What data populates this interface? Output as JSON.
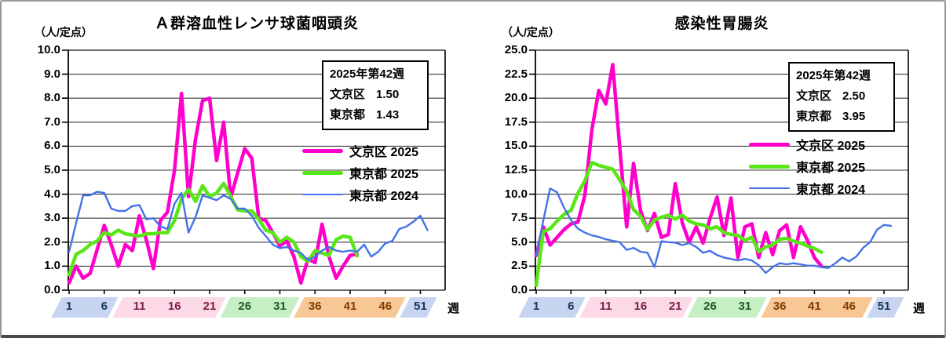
{
  "colors": {
    "bunkyo2025": "#FF00CC",
    "tokyo2025": "#59E617",
    "tokyo2024": "#4472E8",
    "band_blue": "#C7D5F0",
    "band_pink": "#FBD9E6",
    "band_green": "#C7EFC5",
    "band_orange": "#F7C795",
    "grid": "#3a3a3a",
    "frame": "#000000"
  },
  "legend": [
    {
      "label": "文京区 2025",
      "series": "bunkyo2025"
    },
    {
      "label": "東京都 2025",
      "series": "tokyo2025"
    },
    {
      "label": "東京都 2024",
      "series": "tokyo2024"
    }
  ],
  "x_axis": {
    "unit": "週",
    "tick_weeks": [
      1,
      6,
      11,
      16,
      21,
      26,
      31,
      36,
      41,
      46,
      51
    ],
    "bands": [
      {
        "color_key": "band_blue",
        "text_color": "#17365D",
        "weeks": [
          1,
          6
        ]
      },
      {
        "color_key": "band_pink",
        "text_color": "#7A1F45",
        "weeks": [
          11,
          16,
          21
        ]
      },
      {
        "color_key": "band_green",
        "text_color": "#1E5C1E",
        "weeks": [
          26,
          31
        ]
      },
      {
        "color_key": "band_orange",
        "text_color": "#833C00",
        "weeks": [
          36,
          41,
          46
        ]
      },
      {
        "color_key": "band_blue",
        "text_color": "#17365D",
        "weeks": [
          51
        ]
      }
    ]
  },
  "chart_data": [
    {
      "type": "line",
      "title": "Ａ群溶血性レンサ球菌咽頭炎",
      "unit_label": "（人/定点）",
      "xlabel": "週",
      "xlim": [
        1,
        52
      ],
      "ylim": [
        0,
        10
      ],
      "grid": true,
      "y_ticks": [
        "10.0",
        "9.0",
        "8.0",
        "7.0",
        "6.0",
        "5.0",
        "4.0",
        "3.0",
        "2.0",
        "1.0",
        "0.0"
      ],
      "info_box": {
        "week": "2025年第42週",
        "rows": [
          {
            "label": "文京区",
            "value": "1.50"
          },
          {
            "label": "東京都",
            "value": "1.43"
          }
        ]
      },
      "series": [
        {
          "name": "文京区 2025",
          "key": "bunkyo2025",
          "start_week": 1,
          "values": [
            0.3,
            1.0,
            0.5,
            0.7,
            1.7,
            2.7,
            1.9,
            1.0,
            1.9,
            1.65,
            3.1,
            2.1,
            0.9,
            2.9,
            3.25,
            5.0,
            8.2,
            3.9,
            6.3,
            7.9,
            8.0,
            5.4,
            7.0,
            3.85,
            4.9,
            5.9,
            5.5,
            3.0,
            2.9,
            2.4,
            1.85,
            2.05,
            1.4,
            0.3,
            1.3,
            1.15,
            2.75,
            1.4,
            0.5,
            1.0,
            1.45,
            1.5
          ]
        },
        {
          "name": "東京都 2025",
          "key": "tokyo2025",
          "start_week": 1,
          "values": [
            0.65,
            1.5,
            1.65,
            1.9,
            2.05,
            2.4,
            2.3,
            2.5,
            2.35,
            2.3,
            2.25,
            2.35,
            2.35,
            2.4,
            2.4,
            2.9,
            3.8,
            4.2,
            3.7,
            4.35,
            3.9,
            4.05,
            4.45,
            3.9,
            3.35,
            3.3,
            3.3,
            2.95,
            2.5,
            2.4,
            2.0,
            2.2,
            2.0,
            1.4,
            1.2,
            1.65,
            1.55,
            1.45,
            2.1,
            2.25,
            2.2,
            1.43
          ]
        },
        {
          "name": "東京都 2024",
          "key": "tokyo2024",
          "start_week": 1,
          "values": [
            1.6,
            2.8,
            3.95,
            3.95,
            4.1,
            4.05,
            3.4,
            3.3,
            3.3,
            3.5,
            3.55,
            2.95,
            3.0,
            2.65,
            2.55,
            3.6,
            4.05,
            2.4,
            3.05,
            3.95,
            3.85,
            3.75,
            3.95,
            3.8,
            3.4,
            3.4,
            3.1,
            2.6,
            2.25,
            1.9,
            1.75,
            1.8,
            1.65,
            1.55,
            1.25,
            1.4,
            1.65,
            1.8,
            1.65,
            1.6,
            1.65,
            1.6,
            1.9,
            1.4,
            1.6,
            1.95,
            2.05,
            2.55,
            2.65,
            2.85,
            3.1,
            2.5
          ]
        }
      ]
    },
    {
      "type": "line",
      "title": "感染性胃腸炎",
      "unit_label": "（人/定点）",
      "xlabel": "週",
      "xlim": [
        1,
        52
      ],
      "ylim": [
        0,
        25
      ],
      "grid": true,
      "y_ticks": [
        "25.0",
        "22.5",
        "20.0",
        "17.5",
        "15.0",
        "12.5",
        "10.0",
        "7.5",
        "5.0",
        "2.5",
        "0.0"
      ],
      "info_box": {
        "week": "2025年第42週",
        "rows": [
          {
            "label": "文京区",
            "value": "2.50"
          },
          {
            "label": "東京都",
            "value": "3.95"
          }
        ]
      },
      "series": [
        {
          "name": "文京区 2025",
          "key": "bunkyo2025",
          "start_week": 1,
          "values": [
            3.6,
            6.6,
            4.7,
            5.5,
            6.3,
            6.9,
            7.1,
            9.9,
            16.7,
            20.8,
            19.4,
            23.5,
            15.0,
            6.6,
            13.2,
            8.3,
            6.2,
            8.0,
            5.5,
            5.8,
            11.1,
            7.0,
            5.0,
            6.6,
            4.9,
            7.5,
            9.7,
            5.7,
            9.6,
            3.4,
            6.6,
            6.9,
            3.4,
            6.0,
            3.7,
            6.2,
            6.8,
            3.4,
            6.6,
            5.2,
            3.4,
            2.5
          ]
        },
        {
          "name": "東京都 2025",
          "key": "tokyo2025",
          "start_week": 1,
          "values": [
            0.5,
            6.1,
            6.4,
            7.2,
            7.9,
            8.3,
            10.1,
            11.4,
            13.3,
            13.0,
            12.8,
            12.6,
            11.5,
            10.3,
            8.4,
            7.7,
            6.3,
            7.3,
            7.6,
            7.8,
            7.4,
            7.8,
            7.2,
            6.9,
            6.8,
            6.4,
            6.6,
            6.0,
            5.8,
            5.7,
            5.2,
            5.5,
            4.0,
            4.5,
            4.7,
            5.3,
            5.4,
            5.1,
            4.9,
            4.6,
            4.35,
            3.95
          ]
        },
        {
          "name": "東京都 2024",
          "key": "tokyo2024",
          "start_week": 1,
          "values": [
            3.6,
            7.2,
            10.6,
            10.2,
            8.6,
            7.3,
            6.4,
            6.0,
            5.7,
            5.55,
            5.3,
            5.15,
            5.0,
            4.2,
            4.4,
            4.0,
            3.9,
            2.4,
            5.1,
            5.0,
            4.95,
            4.7,
            4.9,
            4.5,
            3.9,
            4.1,
            3.65,
            3.4,
            3.25,
            3.1,
            3.25,
            3.1,
            2.6,
            1.8,
            2.4,
            2.8,
            2.7,
            2.8,
            2.7,
            2.55,
            2.55,
            2.4,
            2.3,
            2.8,
            3.4,
            3.0,
            3.5,
            4.4,
            5.0,
            6.3,
            6.8,
            6.7
          ]
        }
      ]
    }
  ]
}
